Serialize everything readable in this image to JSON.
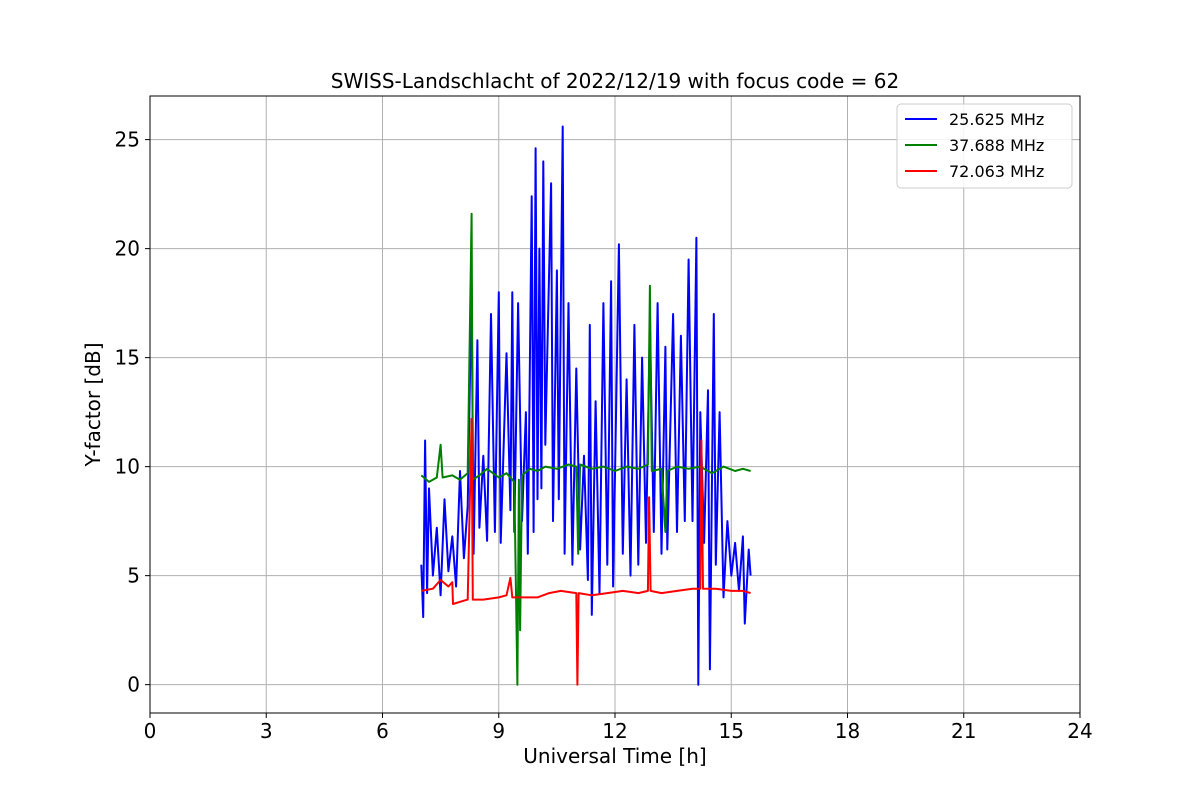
{
  "chart_data": {
    "type": "line",
    "title": "SWISS-Landschlacht of 2022/12/19 with focus code = 62",
    "xlabel": "Universal Time [h]",
    "ylabel": "Y-factor [dB]",
    "xlim": [
      0,
      24
    ],
    "ylim": [
      -1.3,
      27
    ],
    "xticks": [
      0,
      3,
      6,
      9,
      12,
      15,
      18,
      21,
      24
    ],
    "yticks": [
      0,
      5,
      10,
      15,
      20,
      25
    ],
    "grid": true,
    "legend_position": "top-right",
    "series": [
      {
        "name": "  25.625 MHz",
        "color": "#0000ff",
        "points": [
          [
            7.0,
            5.5
          ],
          [
            7.05,
            3.1
          ],
          [
            7.1,
            11.2
          ],
          [
            7.15,
            4.2
          ],
          [
            7.2,
            9.0
          ],
          [
            7.3,
            5.0
          ],
          [
            7.4,
            7.2
          ],
          [
            7.5,
            4.1
          ],
          [
            7.6,
            8.5
          ],
          [
            7.7,
            5.2
          ],
          [
            7.8,
            6.8
          ],
          [
            7.9,
            4.5
          ],
          [
            8.0,
            9.8
          ],
          [
            8.1,
            5.8
          ],
          [
            8.2,
            8.2
          ],
          [
            8.3,
            18.3
          ],
          [
            8.35,
            6.0
          ],
          [
            8.45,
            15.8
          ],
          [
            8.5,
            7.2
          ],
          [
            8.6,
            10.5
          ],
          [
            8.7,
            6.6
          ],
          [
            8.8,
            17.0
          ],
          [
            8.9,
            7.0
          ],
          [
            9.0,
            18.0
          ],
          [
            9.05,
            6.5
          ],
          [
            9.2,
            15.2
          ],
          [
            9.3,
            8.0
          ],
          [
            9.35,
            18.0
          ],
          [
            9.4,
            7.0
          ],
          [
            9.5,
            17.5
          ],
          [
            9.6,
            7.5
          ],
          [
            9.7,
            12.5
          ],
          [
            9.75,
            6.0
          ],
          [
            9.85,
            22.4
          ],
          [
            9.9,
            7.0
          ],
          [
            9.95,
            24.6
          ],
          [
            10.0,
            8.5
          ],
          [
            10.05,
            20.0
          ],
          [
            10.1,
            9.0
          ],
          [
            10.15,
            24.0
          ],
          [
            10.2,
            11.0
          ],
          [
            10.25,
            15.0
          ],
          [
            10.35,
            23.0
          ],
          [
            10.4,
            7.5
          ],
          [
            10.5,
            19.0
          ],
          [
            10.55,
            8.5
          ],
          [
            10.65,
            25.6
          ],
          [
            10.7,
            6.0
          ],
          [
            10.8,
            17.5
          ],
          [
            10.9,
            5.5
          ],
          [
            11.0,
            14.5
          ],
          [
            11.1,
            6.2
          ],
          [
            11.2,
            10.5
          ],
          [
            11.3,
            4.8
          ],
          [
            11.35,
            16.5
          ],
          [
            11.4,
            3.2
          ],
          [
            11.5,
            13.0
          ],
          [
            11.6,
            4.2
          ],
          [
            11.7,
            17.5
          ],
          [
            11.8,
            5.5
          ],
          [
            11.9,
            18.5
          ],
          [
            11.95,
            4.5
          ],
          [
            12.1,
            20.2
          ],
          [
            12.2,
            6.0
          ],
          [
            12.3,
            14.0
          ],
          [
            12.4,
            5.0
          ],
          [
            12.5,
            16.5
          ],
          [
            12.6,
            5.5
          ],
          [
            12.7,
            15.0
          ],
          [
            12.8,
            6.5
          ],
          [
            12.9,
            16.5
          ],
          [
            13.0,
            7.0
          ],
          [
            13.1,
            17.5
          ],
          [
            13.2,
            6.0
          ],
          [
            13.3,
            15.5
          ],
          [
            13.35,
            6.2
          ],
          [
            13.5,
            17.0
          ],
          [
            13.6,
            7.0
          ],
          [
            13.7,
            16.0
          ],
          [
            13.8,
            7.5
          ],
          [
            13.9,
            19.5
          ],
          [
            14.0,
            7.5
          ],
          [
            14.1,
            20.5
          ],
          [
            14.15,
            0.0
          ],
          [
            14.2,
            12.5
          ],
          [
            14.3,
            6.5
          ],
          [
            14.4,
            13.5
          ],
          [
            14.45,
            0.7
          ],
          [
            14.55,
            17.0
          ],
          [
            14.6,
            5.5
          ],
          [
            14.7,
            12.5
          ],
          [
            14.8,
            4.0
          ],
          [
            14.9,
            7.5
          ],
          [
            15.0,
            5.0
          ],
          [
            15.1,
            6.5
          ],
          [
            15.2,
            4.3
          ],
          [
            15.3,
            6.8
          ],
          [
            15.35,
            2.8
          ],
          [
            15.45,
            6.2
          ],
          [
            15.5,
            5.0
          ]
        ]
      },
      {
        "name": "  37.688 MHz",
        "color": "#008000",
        "points": [
          [
            7.0,
            9.6
          ],
          [
            7.2,
            9.3
          ],
          [
            7.4,
            9.5
          ],
          [
            7.5,
            11.0
          ],
          [
            7.55,
            9.5
          ],
          [
            7.8,
            9.6
          ],
          [
            8.0,
            9.4
          ],
          [
            8.2,
            9.7
          ],
          [
            8.3,
            21.6
          ],
          [
            8.33,
            9.4
          ],
          [
            8.5,
            9.6
          ],
          [
            8.7,
            9.9
          ],
          [
            9.0,
            9.5
          ],
          [
            9.2,
            9.7
          ],
          [
            9.4,
            9.3
          ],
          [
            9.48,
            0.0
          ],
          [
            9.52,
            9.4
          ],
          [
            9.55,
            2.5
          ],
          [
            9.6,
            9.6
          ],
          [
            9.8,
            9.9
          ],
          [
            10.0,
            9.8
          ],
          [
            10.2,
            10.0
          ],
          [
            10.5,
            9.9
          ],
          [
            10.8,
            10.1
          ],
          [
            11.0,
            10.0
          ],
          [
            11.05,
            6.0
          ],
          [
            11.1,
            10.1
          ],
          [
            11.4,
            9.9
          ],
          [
            11.7,
            10.0
          ],
          [
            12.0,
            9.8
          ],
          [
            12.3,
            10.0
          ],
          [
            12.6,
            9.9
          ],
          [
            12.85,
            10.1
          ],
          [
            12.9,
            18.3
          ],
          [
            12.95,
            9.8
          ],
          [
            13.2,
            9.9
          ],
          [
            13.3,
            7.0
          ],
          [
            13.35,
            9.8
          ],
          [
            13.6,
            10.0
          ],
          [
            13.9,
            9.9
          ],
          [
            14.2,
            10.0
          ],
          [
            14.5,
            9.7
          ],
          [
            14.8,
            10.0
          ],
          [
            15.1,
            9.8
          ],
          [
            15.3,
            9.9
          ],
          [
            15.5,
            9.8
          ]
        ]
      },
      {
        "name": "  72.063 MHz",
        "color": "#ff0000",
        "points": [
          [
            7.0,
            4.3
          ],
          [
            7.3,
            4.4
          ],
          [
            7.5,
            4.8
          ],
          [
            7.7,
            4.5
          ],
          [
            7.8,
            4.7
          ],
          [
            7.82,
            3.7
          ],
          [
            8.0,
            3.8
          ],
          [
            8.2,
            3.9
          ],
          [
            8.3,
            12.2
          ],
          [
            8.33,
            3.9
          ],
          [
            8.6,
            3.9
          ],
          [
            9.0,
            4.0
          ],
          [
            9.2,
            4.1
          ],
          [
            9.3,
            4.9
          ],
          [
            9.35,
            4.0
          ],
          [
            9.6,
            4.0
          ],
          [
            10.0,
            4.0
          ],
          [
            10.3,
            4.2
          ],
          [
            10.6,
            4.3
          ],
          [
            11.0,
            4.2
          ],
          [
            11.03,
            0.0
          ],
          [
            11.06,
            4.2
          ],
          [
            11.4,
            4.1
          ],
          [
            11.8,
            4.2
          ],
          [
            12.2,
            4.3
          ],
          [
            12.6,
            4.2
          ],
          [
            12.85,
            4.3
          ],
          [
            12.88,
            8.6
          ],
          [
            12.92,
            4.3
          ],
          [
            13.2,
            4.2
          ],
          [
            13.6,
            4.3
          ],
          [
            14.0,
            4.4
          ],
          [
            14.2,
            4.4
          ],
          [
            14.23,
            11.2
          ],
          [
            14.27,
            4.4
          ],
          [
            14.6,
            4.4
          ],
          [
            15.0,
            4.3
          ],
          [
            15.3,
            4.3
          ],
          [
            15.5,
            4.2
          ]
        ]
      }
    ]
  }
}
